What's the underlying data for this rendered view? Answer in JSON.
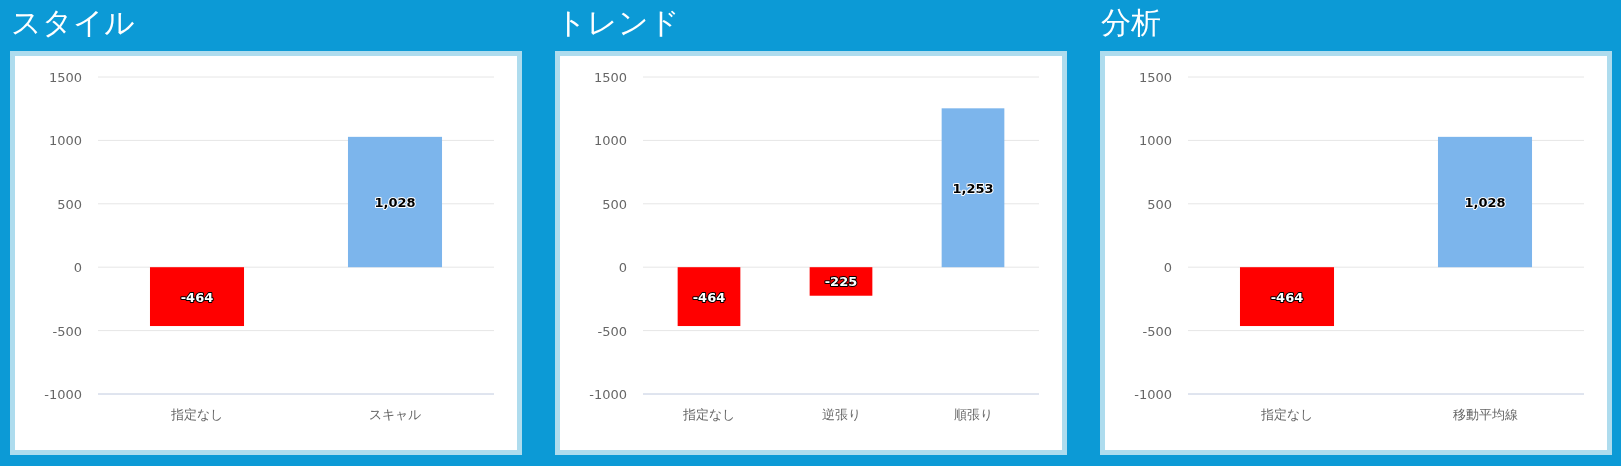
{
  "chart_data": [
    {
      "type": "bar",
      "title": "スタイル",
      "categories": [
        "指定なし",
        "スキャル"
      ],
      "values": [
        -464,
        1028
      ],
      "colors": [
        "#ff0000",
        "#7cb5ec"
      ],
      "value_labels": [
        "-464",
        "1,028"
      ],
      "ylim": [
        -1000,
        1500
      ],
      "yticks": [
        -1000,
        -500,
        0,
        500,
        1000,
        1500
      ],
      "grid": "y"
    },
    {
      "type": "bar",
      "title": "トレンド",
      "categories": [
        "指定なし",
        "逆張り",
        "順張り"
      ],
      "values": [
        -464,
        -225,
        1253
      ],
      "colors": [
        "#ff0000",
        "#ff0000",
        "#7cb5ec"
      ],
      "value_labels": [
        "-464",
        "-225",
        "1,253"
      ],
      "ylim": [
        -1000,
        1500
      ],
      "yticks": [
        -1000,
        -500,
        0,
        500,
        1000,
        1500
      ],
      "grid": "y"
    },
    {
      "type": "bar",
      "title": "分析",
      "categories": [
        "指定なし",
        "移動平均線"
      ],
      "values": [
        -464,
        1028
      ],
      "colors": [
        "#ff0000",
        "#7cb5ec"
      ],
      "value_labels": [
        "-464",
        "1,028"
      ],
      "ylim": [
        -1000,
        1500
      ],
      "yticks": [
        -1000,
        -500,
        0,
        500,
        1000,
        1500
      ],
      "grid": "y"
    }
  ]
}
